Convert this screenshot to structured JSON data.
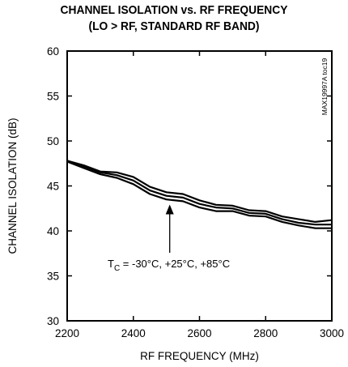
{
  "chart_data": {
    "type": "line",
    "title": "CHANNEL ISOLATION vs. RF FREQUENCY",
    "subtitle": "(LO > RF, STANDARD RF BAND)",
    "xlabel": "RF FREQUENCY (MHz)",
    "ylabel": "CHANNEL ISOLATION (dB)",
    "xlim": [
      2200,
      3000
    ],
    "ylim": [
      30,
      60
    ],
    "xticks": [
      2200,
      2400,
      2600,
      2800,
      3000
    ],
    "yticks": [
      30,
      35,
      40,
      45,
      50,
      55,
      60
    ],
    "grid": false,
    "legend": null,
    "reference_code": "MAX19997A toc19",
    "annotation": {
      "text_main": "T",
      "text_sub": "C",
      "text_rest": " = -30°C, +25°C, +85°C",
      "arrow_target": {
        "x": 2510,
        "y": 43.2
      }
    },
    "series": [
      {
        "x": [
          2200,
          2250,
          2300,
          2350,
          2400,
          2450,
          2500,
          2550,
          2600,
          2650,
          2700,
          2750,
          2800,
          2850,
          2900,
          2950,
          3000
        ],
        "values": [
          47.8,
          47.3,
          46.6,
          46.5,
          46.0,
          44.9,
          44.3,
          44.1,
          43.4,
          42.9,
          42.8,
          42.3,
          42.2,
          41.6,
          41.3,
          41.0,
          41.2
        ]
      },
      {
        "x": [
          2200,
          2250,
          2300,
          2350,
          2400,
          2450,
          2500,
          2550,
          2600,
          2650,
          2700,
          2750,
          2800,
          2850,
          2900,
          2950,
          3000
        ],
        "values": [
          47.8,
          47.2,
          46.5,
          46.2,
          45.6,
          44.5,
          43.9,
          43.7,
          43.0,
          42.6,
          42.5,
          42.0,
          41.9,
          41.3,
          40.9,
          40.7,
          40.7
        ]
      },
      {
        "x": [
          2200,
          2250,
          2300,
          2350,
          2400,
          2450,
          2500,
          2550,
          2600,
          2650,
          2700,
          2750,
          2800,
          2850,
          2900,
          2950,
          3000
        ],
        "values": [
          47.7,
          47.0,
          46.3,
          45.9,
          45.2,
          44.1,
          43.5,
          43.3,
          42.6,
          42.2,
          42.2,
          41.7,
          41.6,
          41.0,
          40.6,
          40.3,
          40.3
        ]
      }
    ]
  }
}
